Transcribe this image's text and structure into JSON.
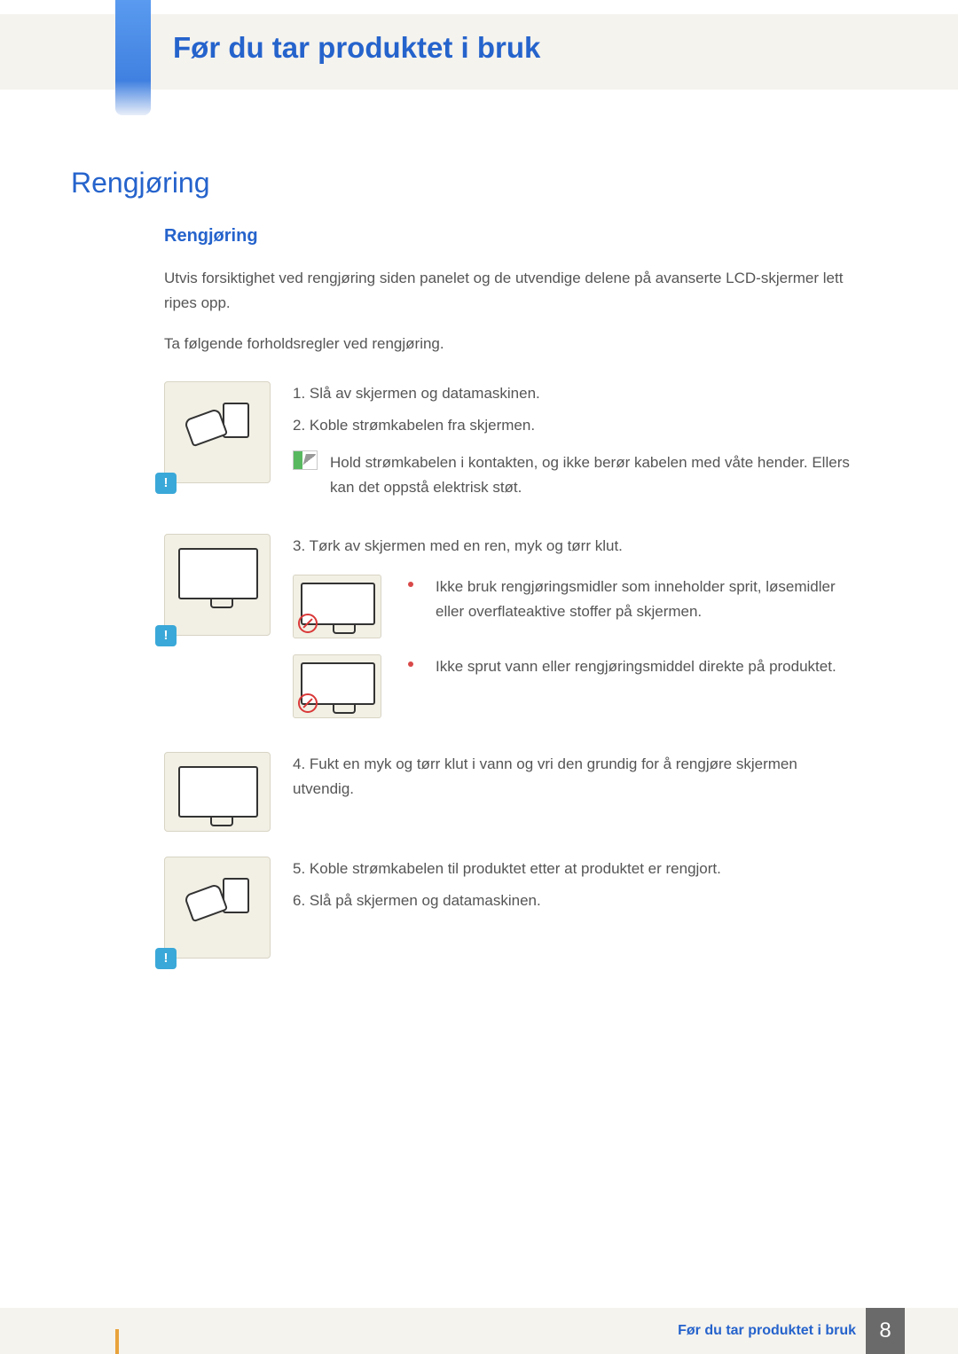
{
  "header": {
    "title": "Før du tar produktet i bruk"
  },
  "main_heading": "Rengjøring",
  "sub_heading": "Rengjøring",
  "intro1": "Utvis forsiktighet ved rengjøring siden panelet og de utvendige delene på avanserte LCD-skjermer lett ripes opp.",
  "intro2": "Ta følgende forholdsregler ved rengjøring.",
  "section1": {
    "step1": "1. Slå av skjermen og datamaskinen.",
    "step2": "2. Koble strømkabelen fra skjermen.",
    "note": "Hold strømkabelen i kontakten, og ikke berør kabelen med våte hender. Ellers kan det oppstå elektrisk støt."
  },
  "section2": {
    "step3": "3. Tørk av skjermen med en ren, myk og tørr klut.",
    "bullet1": "Ikke bruk rengjøringsmidler som inneholder sprit, løsemidler eller overflateaktive stoffer på skjermen.",
    "bullet2": "Ikke sprut vann eller rengjøringsmiddel direkte på produktet."
  },
  "section3": {
    "step4": "4. Fukt en myk og tørr klut i vann og vri den grundig for å rengjøre skjermen utvendig."
  },
  "section4": {
    "step5": "5. Koble strømkabelen til produktet etter at produktet er rengjort.",
    "step6": "6. Slå på skjermen og datamaskinen."
  },
  "footer": {
    "text": "Før du tar produktet i bruk",
    "page": "8"
  }
}
